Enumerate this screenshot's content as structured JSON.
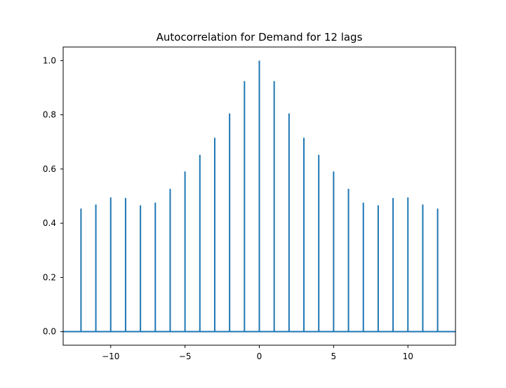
{
  "chart_data": {
    "type": "bar",
    "title": "Autocorrelation for Demand for 12 lags",
    "xlabel": "",
    "ylabel": "",
    "x": [
      -12,
      -11,
      -10,
      -9,
      -8,
      -7,
      -6,
      -5,
      -4,
      -3,
      -2,
      -1,
      0,
      1,
      2,
      3,
      4,
      5,
      6,
      7,
      8,
      9,
      10,
      11,
      12
    ],
    "values": [
      0.454,
      0.469,
      0.495,
      0.493,
      0.466,
      0.476,
      0.527,
      0.591,
      0.652,
      0.715,
      0.805,
      0.924,
      1.0,
      0.924,
      0.805,
      0.715,
      0.652,
      0.591,
      0.527,
      0.476,
      0.466,
      0.493,
      0.495,
      0.469,
      0.454
    ],
    "xlim": [
      -13.2,
      13.2
    ],
    "ylim": [
      -0.05,
      1.05
    ],
    "xticks": [
      -10,
      -5,
      0,
      5,
      10
    ],
    "xtick_labels": [
      "−10",
      "−5",
      "0",
      "5",
      "10"
    ],
    "yticks": [
      0.0,
      0.2,
      0.4,
      0.6,
      0.8,
      1.0
    ],
    "ytick_labels": [
      "0.0",
      "0.2",
      "0.4",
      "0.6",
      "0.8",
      "1.0"
    ],
    "grid": false,
    "baseline": 0,
    "color": "#1f77b4"
  }
}
